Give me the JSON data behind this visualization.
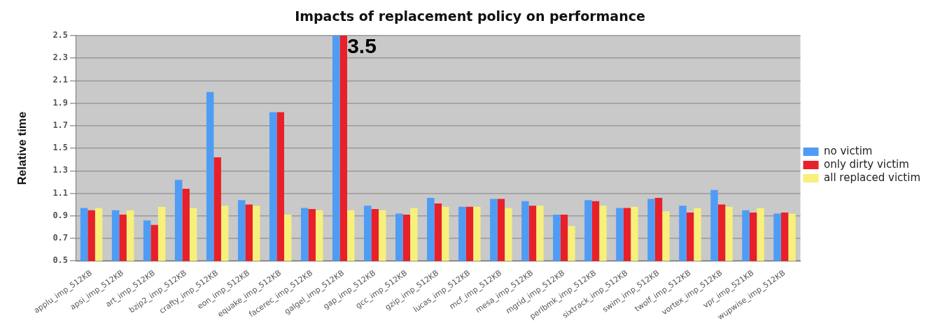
{
  "chart_data": {
    "type": "bar",
    "title": "Impacts of replacement policy on performance",
    "ylabel": "Relative time",
    "categories": [
      "applu_imp_512KB",
      "apsi_imp_512KB",
      "art_imp_512KB",
      "bzip2_imp_512KB",
      "crafty_imp_512KB",
      "eon_imp_512KB",
      "equake_imp_512KB",
      "facerec_imp_512KB",
      "galgel_imp_512KB",
      "gap_imp_512KB",
      "gcc_imp_512KB",
      "gzip_imp_512KB",
      "lucas_imp_512KB",
      "mcf_imp_512KB",
      "mesa_imp_512KB",
      "mgrid_imp_512KB",
      "perlbmk_imp_512KB",
      "sixtrack_imp_512KB",
      "swim_imp_512KB",
      "twolf_imp_512KB",
      "vortex_imp_512KB",
      "vpr_imp_521KB",
      "wupwise_imp_512KB"
    ],
    "series": [
      {
        "name": "no victim",
        "color": "#4f9cf5",
        "values": [
          0.97,
          0.95,
          0.86,
          1.22,
          2.0,
          1.04,
          1.82,
          0.97,
          2.5,
          0.99,
          0.92,
          1.06,
          0.98,
          1.05,
          1.03,
          0.91,
          1.04,
          0.97,
          1.05,
          0.99,
          1.13,
          0.95,
          0.92
        ]
      },
      {
        "name": "only dirty victim",
        "color": "#e8202a",
        "values": [
          0.95,
          0.91,
          0.82,
          1.14,
          1.42,
          1.0,
          1.82,
          0.96,
          2.5,
          0.96,
          0.91,
          1.01,
          0.98,
          1.05,
          0.99,
          0.91,
          1.03,
          0.97,
          1.06,
          0.93,
          1.0,
          0.93,
          0.93
        ]
      },
      {
        "name": "all replaced victim",
        "color": "#f7f07a",
        "values": [
          0.97,
          0.95,
          0.98,
          0.97,
          0.99,
          0.99,
          0.91,
          0.95,
          0.95,
          0.95,
          0.97,
          0.98,
          0.98,
          0.97,
          0.99,
          0.81,
          0.99,
          0.98,
          0.94,
          0.97,
          0.98,
          0.97,
          0.92
        ]
      }
    ],
    "ylim": [
      0.5,
      2.5
    ],
    "yticks": [
      0.5,
      0.7,
      0.9,
      1.1,
      1.3,
      1.5,
      1.7,
      1.9,
      2.1,
      2.3,
      2.5
    ],
    "grid": "y",
    "legend": "right",
    "annotations": [
      {
        "text": "3.5",
        "x": "galgel_imp_512KB",
        "y": 2.5
      }
    ]
  }
}
